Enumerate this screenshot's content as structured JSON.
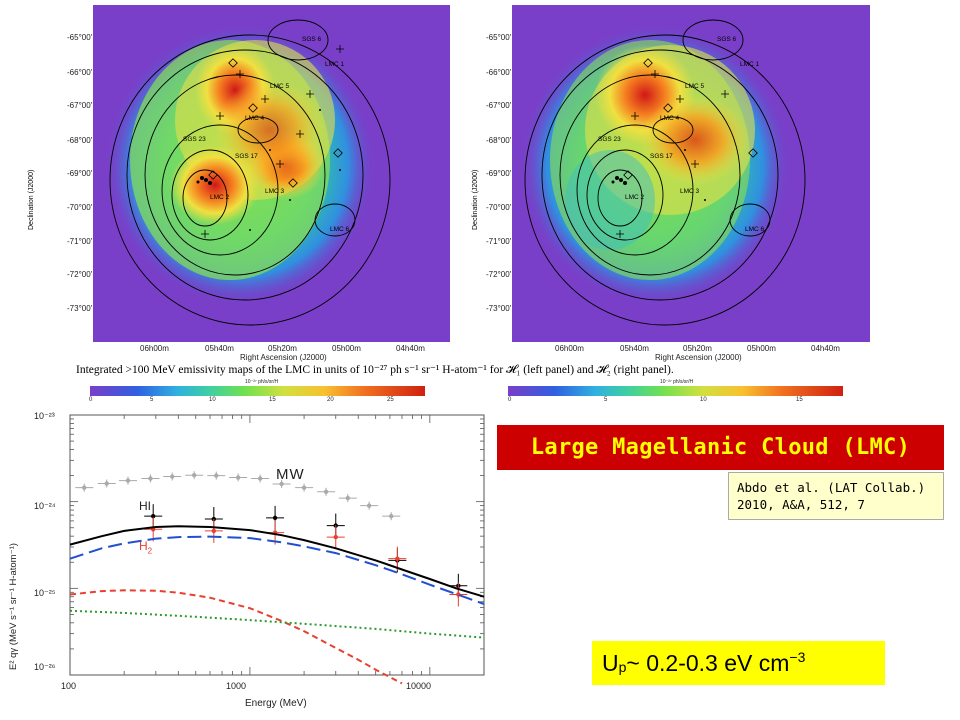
{
  "maps": {
    "dec_ticks": [
      "-65°00'",
      "-66°00'",
      "-67°00'",
      "-68°00'",
      "-69°00'",
      "-70°00'",
      "-71°00'",
      "-72°00'",
      "-73°00'"
    ],
    "ra_ticks": [
      "06h00m",
      "05h40m",
      "05h20m",
      "05h00m",
      "04h40m"
    ],
    "ylabel": "Declination (J2000)",
    "xlabel": "Right Ascension (J2000)",
    "region_labels": [
      "SGS 6",
      "LMC 1",
      "LMC 5",
      "LMC 4",
      "SGS 23",
      "SGS 17",
      "LMC 2",
      "LMC 3",
      "LMC 6"
    ],
    "caption": "Integrated >100 MeV emissivity maps of the LMC in units of 10⁻²⁷ ph s⁻¹ sr⁻¹ H-atom⁻¹ for 𝓗₁ (left panel) and 𝓗₂ (right panel).",
    "left_colorbar": {
      "ticks": [
        "0",
        "5",
        "10",
        "15",
        "20",
        "25"
      ],
      "unit": "10⁻²⁷ ph/s/sr/H"
    },
    "right_colorbar": {
      "ticks": [
        "0",
        "5",
        "10",
        "15"
      ],
      "unit": "10⁻²⁷ ph/s/sr/H"
    }
  },
  "chart_data": {
    "type": "line",
    "xlabel": "Energy (MeV)",
    "ylabel": "E² qγ (MeV s⁻¹ sr⁻¹ H-atom⁻¹)",
    "xscale": "log",
    "yscale": "log",
    "xlim": [
      100,
      20000
    ],
    "ylim": [
      1e-26,
      1e-23
    ],
    "x_ticks": [
      "100",
      "1000",
      "10000"
    ],
    "y_ticks": [
      "10⁻²³",
      "10⁻²⁴",
      "10⁻²⁵",
      "10⁻²⁶"
    ],
    "series": [
      {
        "name": "MW",
        "color": "#aaaaaa",
        "kind": "points",
        "x": [
          120,
          160,
          210,
          280,
          370,
          490,
          650,
          860,
          1140,
          1500,
          2000,
          2650,
          3500,
          4600,
          6100
        ],
        "y": [
          1.45e-24,
          1.62e-24,
          1.75e-24,
          1.85e-24,
          1.95e-24,
          2.02e-24,
          2e-24,
          1.9e-24,
          1.85e-24,
          1.6e-24,
          1.45e-24,
          1.3e-24,
          1.1e-24,
          9e-25,
          6.8e-25
        ]
      },
      {
        "name": "HI",
        "color": "#000000",
        "kind": "points",
        "x": [
          290,
          630,
          1380,
          3000,
          6600,
          14400
        ],
        "y": [
          6.8e-25,
          6.3e-25,
          6.5e-25,
          5.3e-25,
          2.1e-25,
          1.07e-25
        ]
      },
      {
        "name": "H2",
        "color": "#e84030",
        "kind": "points",
        "x": [
          290,
          630,
          1380,
          3000,
          6600,
          14400
        ],
        "y": [
          4.8e-25,
          4.6e-25,
          4.4e-25,
          3.9e-25,
          2.2e-25,
          8.5e-26
        ]
      },
      {
        "name": "",
        "color": "#000000",
        "kind": "solid",
        "x": [
          100,
          150,
          200,
          300,
          400,
          600,
          1000,
          1500,
          2000,
          3000,
          5000,
          7000,
          10000,
          14000,
          20000
        ],
        "y": [
          3.2e-25,
          4e-25,
          4.6e-25,
          5.1e-25,
          5.2e-25,
          5.1e-25,
          4.7e-25,
          4.1e-25,
          3.6e-25,
          2.9e-25,
          2.1e-25,
          1.65e-25,
          1.28e-25,
          1e-25,
          8e-26
        ]
      },
      {
        "name": "",
        "color": "#2050d0",
        "kind": "dashed",
        "x": [
          100,
          150,
          200,
          300,
          400,
          600,
          1000,
          1500,
          2000,
          3000,
          5000,
          7000,
          10000,
          14000,
          20000
        ],
        "y": [
          2.2e-25,
          2.9e-25,
          3.3e-25,
          3.75e-25,
          3.9e-25,
          3.95e-25,
          3.8e-25,
          3.4e-25,
          3.05e-25,
          2.55e-25,
          1.85e-25,
          1.45e-25,
          1.1e-25,
          8.6e-26,
          6.6e-26
        ]
      },
      {
        "name": "",
        "color": "#e84030",
        "kind": "short-dashed",
        "x": [
          100,
          150,
          200,
          300,
          400,
          600,
          1000,
          1500,
          2000,
          3000,
          4000,
          5000,
          7000
        ],
        "y": [
          8.5e-26,
          9.3e-26,
          9.5e-26,
          9.4e-26,
          8.9e-26,
          7.8e-26,
          5.9e-26,
          4.2e-26,
          3.2e-26,
          2.05e-26,
          1.5e-26,
          1.15e-26,
          8e-27
        ]
      },
      {
        "name": "",
        "color": "#2a9a2a",
        "kind": "dotted",
        "x": [
          100,
          200,
          500,
          1000,
          2000,
          5000,
          10000,
          20000
        ],
        "y": [
          5.5e-26,
          5.2e-26,
          4.7e-26,
          4.3e-26,
          3.9e-26,
          3.4e-26,
          3e-26,
          2.7e-26
        ]
      }
    ]
  },
  "labels": {
    "mw": "MW",
    "hi": "HI",
    "h2": "H2"
  },
  "title": "Large Magellanic Cloud (LMC)",
  "reference": {
    "line1": "Abdo et al. (LAT Collab.)",
    "line2": "2010, A&A, 512, 7"
  },
  "energy_density": {
    "symbol": "U",
    "subscript": "p",
    "text": " ~ 0.2-0.3 eV cm",
    "exponent": "−3"
  }
}
